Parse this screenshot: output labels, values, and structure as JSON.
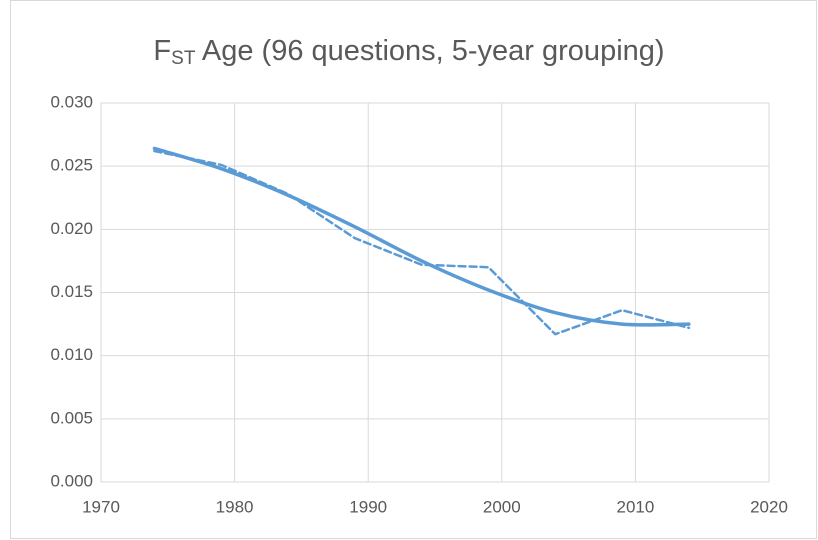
{
  "chart_data": {
    "type": "line",
    "title_parts": [
      "F",
      "ST",
      " Age (96 questions, 5-year grouping)"
    ],
    "xlim": [
      1970,
      2020
    ],
    "xticks": [
      1970,
      1980,
      1990,
      2000,
      2010,
      2020
    ],
    "ylim": [
      0,
      0.03
    ],
    "yticks": [
      {
        "value": 0,
        "label": "0.000"
      },
      0.005,
      {
        "value": 0.01,
        "label": "0.010"
      },
      0.015,
      {
        "value": 0.02,
        "label": "0.020"
      },
      0.025,
      {
        "value": 0.03,
        "label": "0.030"
      }
    ],
    "grid": true,
    "series": [
      {
        "color": "#5b9bd5",
        "dashed": true,
        "smooth": false,
        "x": [
          1974,
          1979,
          1984,
          1989,
          1994,
          1999,
          2004,
          2009,
          2014
        ],
        "values": [
          0.0262,
          0.0251,
          0.0228,
          0.0193,
          0.0172,
          0.017,
          0.0117,
          0.0136,
          0.0122
        ]
      },
      {
        "color": "#5b9bd5",
        "dashed": false,
        "smooth": true,
        "x": [
          1974,
          1979,
          1984,
          1989,
          1994,
          1999,
          2004,
          2009,
          2014
        ],
        "values": [
          0.0264,
          0.0248,
          0.0227,
          0.0202,
          0.0175,
          0.0152,
          0.0134,
          0.0125,
          0.0125
        ]
      }
    ]
  }
}
